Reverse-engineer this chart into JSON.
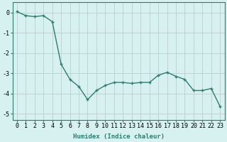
{
  "x": [
    0,
    1,
    2,
    3,
    4,
    5,
    6,
    7,
    8,
    9,
    10,
    11,
    12,
    13,
    14,
    15,
    16,
    17,
    18,
    19,
    20,
    21,
    22,
    23
  ],
  "y": [
    0.05,
    -0.15,
    -0.2,
    -0.15,
    -0.45,
    -2.55,
    -3.3,
    -3.65,
    -4.3,
    -3.85,
    -3.6,
    -3.45,
    -3.45,
    -3.5,
    -3.45,
    -3.45,
    -3.1,
    -2.95,
    -3.15,
    -3.3,
    -3.85,
    -3.85,
    -3.75,
    -4.65
  ],
  "line_color": "#2e7d6e",
  "marker": "+",
  "marker_size": 3,
  "marker_linewidth": 1.0,
  "line_width": 1.0,
  "bg_color": "#d7f0f0",
  "grid_color": "#b8c8c8",
  "xlabel": "Humidex (Indice chaleur)",
  "ylim": [
    -5.3,
    0.5
  ],
  "xlim": [
    -0.5,
    23.5
  ],
  "yticks": [
    0,
    -1,
    -2,
    -3,
    -4,
    -5
  ],
  "xtick_labels": [
    "0",
    "1",
    "2",
    "3",
    "4",
    "5",
    "6",
    "7",
    "8",
    "9",
    "10",
    "11",
    "12",
    "13",
    "14",
    "15",
    "16",
    "17",
    "18",
    "19",
    "20",
    "21",
    "22",
    "23"
  ],
  "label_fontsize": 6.5,
  "tick_fontsize": 6.0
}
